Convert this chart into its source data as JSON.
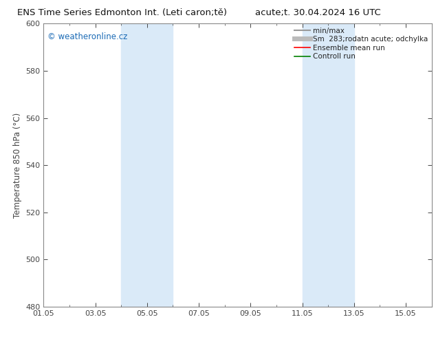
{
  "title_left": "ENS Time Series Edmonton Int. (Leti caron;tě)",
  "title_right": "acute;t. 30.04.2024 16 UTC",
  "ylabel": "Temperature 850 hPa (°C)",
  "bg_color": "#ffffff",
  "plot_bg_color": "#ffffff",
  "ylim": [
    480,
    600
  ],
  "yticks": [
    480,
    500,
    520,
    540,
    560,
    580,
    600
  ],
  "xlim_start": 0.0,
  "xlim_end": 15.0,
  "xtick_labels": [
    "01.05",
    "03.05",
    "05.05",
    "07.05",
    "09.05",
    "11.05",
    "13.05",
    "15.05"
  ],
  "xtick_positions": [
    0.0,
    2.0,
    4.0,
    6.0,
    8.0,
    10.0,
    12.0,
    14.0
  ],
  "shade_regions": [
    {
      "x_start": 3.0,
      "x_end": 5.0,
      "color": "#daeaf8"
    },
    {
      "x_start": 10.0,
      "x_end": 12.0,
      "color": "#daeaf8"
    }
  ],
  "legend_items": [
    {
      "label": "min/max",
      "color": "#999999",
      "lw": 1.5,
      "ls": "-"
    },
    {
      "label": "Sm  283;rodatn acute; odchylka",
      "color": "#bbbbbb",
      "lw": 5,
      "ls": "-"
    },
    {
      "label": "Ensemble mean run",
      "color": "#ff0000",
      "lw": 1.2,
      "ls": "-"
    },
    {
      "label": "Controll run",
      "color": "#008000",
      "lw": 1.2,
      "ls": "-"
    }
  ],
  "watermark": "© weatheronline.cz",
  "watermark_color": "#1a6ab5",
  "spine_color": "#888888",
  "tick_color": "#444444",
  "title_fontsize": 9.5,
  "label_fontsize": 8.5,
  "tick_fontsize": 8,
  "legend_fontsize": 7.5,
  "watermark_fontsize": 8.5
}
